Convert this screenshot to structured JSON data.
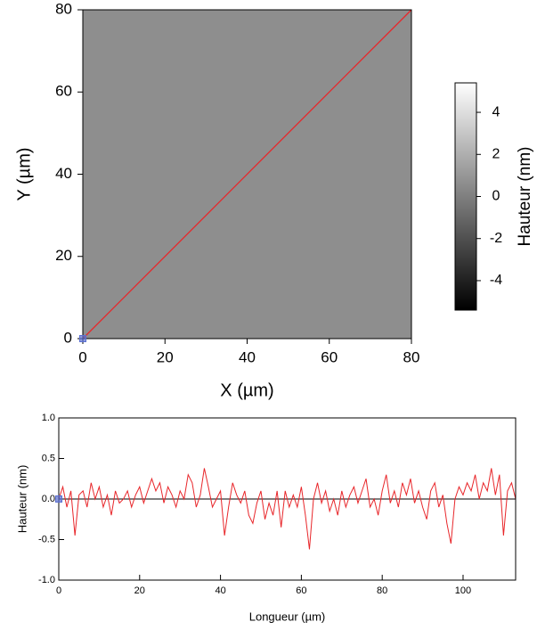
{
  "chart_data": [
    {
      "type": "heatmap",
      "xlabel": "X (µm)",
      "ylabel": "Y (µm)",
      "xlim": [
        0,
        80
      ],
      "ylim": [
        0,
        80
      ],
      "xticks": [
        0,
        20,
        40,
        60,
        80
      ],
      "yticks": [
        0,
        20,
        40,
        60,
        80
      ],
      "profile_line": {
        "x": [
          0,
          80
        ],
        "y": [
          0,
          80
        ],
        "color": "#e8262a"
      },
      "marker": {
        "x": 0,
        "y": 0,
        "color": "#5b6fd0"
      },
      "colorbar": {
        "label": "Hauteur (nm)",
        "lim": [
          -5.4,
          5.4
        ],
        "ticks": [
          4,
          2,
          0,
          -2,
          -4
        ],
        "colors": [
          "#000000",
          "#ffffff"
        ]
      }
    },
    {
      "type": "line",
      "xlabel": "Longueur (µm)",
      "ylabel": "Hauteur (nm)",
      "color": "#e8262a",
      "xlim": [
        0,
        113
      ],
      "ylim": [
        -1,
        1
      ],
      "xticks": [
        0,
        20,
        40,
        60,
        80,
        100
      ],
      "yticks": [
        {
          "value": -1,
          "label": "-1.0"
        },
        {
          "value": -0.5,
          "label": "-0.5"
        },
        {
          "value": 0,
          "label": "0.0"
        },
        {
          "value": 0.5,
          "label": "0.5"
        },
        {
          "value": 1,
          "label": "1.0"
        }
      ],
      "marker": {
        "x": 0,
        "y": 0,
        "color": "#5b6fd0"
      },
      "x": [
        0,
        1,
        2,
        3,
        4,
        5,
        6,
        7,
        8,
        9,
        10,
        11,
        12,
        13,
        14,
        15,
        16,
        17,
        18,
        19,
        20,
        21,
        22,
        23,
        24,
        25,
        26,
        27,
        28,
        29,
        30,
        31,
        32,
        33,
        34,
        35,
        36,
        37,
        38,
        39,
        40,
        41,
        42,
        43,
        44,
        45,
        46,
        47,
        48,
        49,
        50,
        51,
        52,
        53,
        54,
        55,
        56,
        57,
        58,
        59,
        60,
        61,
        62,
        63,
        64,
        65,
        66,
        67,
        68,
        69,
        70,
        71,
        72,
        73,
        74,
        75,
        76,
        77,
        78,
        79,
        80,
        81,
        82,
        83,
        84,
        85,
        86,
        87,
        88,
        89,
        90,
        91,
        92,
        93,
        94,
        95,
        96,
        97,
        98,
        99,
        100,
        101,
        102,
        103,
        104,
        105,
        106,
        107,
        108,
        109,
        110,
        111,
        112,
        113
      ],
      "values": [
        0.0,
        0.15,
        -0.1,
        0.1,
        -0.45,
        0.05,
        0.1,
        -0.1,
        0.2,
        0.0,
        0.15,
        -0.1,
        0.05,
        -0.2,
        0.1,
        -0.05,
        0.0,
        0.1,
        -0.1,
        0.05,
        0.15,
        -0.05,
        0.1,
        0.25,
        0.1,
        0.2,
        -0.05,
        0.15,
        0.05,
        -0.1,
        0.1,
        0.0,
        0.3,
        0.2,
        -0.1,
        0.05,
        0.38,
        0.15,
        -0.1,
        0.0,
        0.1,
        -0.45,
        -0.1,
        0.2,
        0.05,
        -0.05,
        0.1,
        -0.2,
        -0.3,
        -0.05,
        0.1,
        -0.25,
        -0.05,
        -0.2,
        0.1,
        -0.35,
        0.1,
        -0.1,
        0.05,
        -0.1,
        0.15,
        -0.2,
        -0.62,
        0.0,
        0.2,
        -0.05,
        0.1,
        -0.15,
        0.0,
        -0.2,
        0.1,
        -0.1,
        0.05,
        0.15,
        -0.05,
        0.1,
        0.25,
        -0.1,
        0.0,
        -0.2,
        0.1,
        0.3,
        -0.05,
        0.1,
        -0.1,
        0.2,
        0.05,
        0.25,
        -0.05,
        0.1,
        -0.1,
        -0.25,
        0.1,
        0.2,
        -0.1,
        0.05,
        -0.3,
        -0.55,
        0.0,
        0.15,
        0.05,
        0.2,
        0.1,
        0.3,
        0.0,
        0.2,
        0.1,
        0.38,
        0.05,
        0.3,
        -0.45,
        0.1,
        0.2,
        0.0
      ]
    }
  ]
}
